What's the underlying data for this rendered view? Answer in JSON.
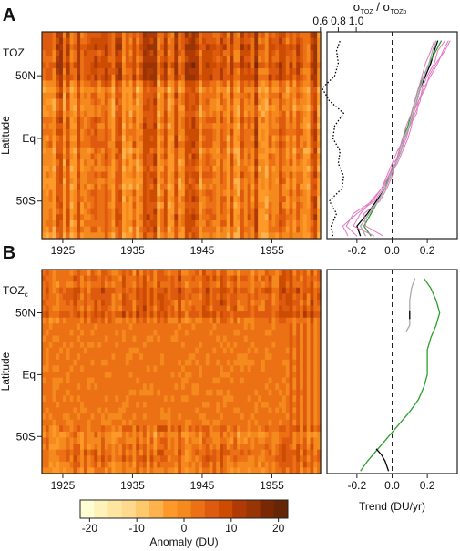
{
  "panels": [
    {
      "id": "A",
      "panel_label": "A",
      "field_label": "TOZ",
      "field_subscript": "",
      "seed": 11,
      "scale": 1.0
    },
    {
      "id": "B",
      "panel_label": "B",
      "field_label": "TOZ",
      "field_subscript": "c",
      "seed": 37,
      "scale": 0.55
    }
  ],
  "heatmap_axes": {
    "ylabel": "Latitude",
    "y_ticks": [
      "50N",
      "Eq",
      "50S"
    ],
    "x_ticks": [
      "1925",
      "1935",
      "1945",
      "1955"
    ]
  },
  "trend_axes": {
    "x_ticks": [
      "-0.2",
      "0.0",
      "0.2"
    ],
    "xlabel": "Trend (DU/yr)",
    "top_axis_label_main": "σ",
    "top_axis_label_sub1": "TOZ",
    "top_axis_label_sep": " / σ",
    "top_axis_label_sub2": "TOZb",
    "top_ticks": [
      "0.6",
      "0.8",
      "1.0"
    ]
  },
  "colorbar": {
    "ticks": [
      "-20",
      "-10",
      "0",
      "10",
      "20"
    ],
    "label": "Anomaly (DU)",
    "colors": [
      "#ffffd4",
      "#fff2b8",
      "#ffe6a0",
      "#fed98e",
      "#fec96a",
      "#feb24c",
      "#fe9929",
      "#f48a1e",
      "#ec7014",
      "#dd5a0e",
      "#cc4c02",
      "#b03a05",
      "#993404",
      "#7a2704",
      "#662506"
    ]
  },
  "chart_data": [
    {
      "type": "heatmap",
      "panel": "A",
      "x_range": [
        1922,
        1962
      ],
      "y_range": [
        -80,
        85
      ],
      "value_range": [
        -22,
        22
      ],
      "title": "",
      "xlabel": "",
      "ylabel": "Latitude"
    },
    {
      "type": "line",
      "panel": "A",
      "xlabel": "",
      "top_axis_label": "σTOZ / σTOZb",
      "x_range": [
        -0.37,
        0.37
      ],
      "y_range": [
        -80,
        85
      ],
      "series": [
        {
          "color": "#000000",
          "lat": [
            -78,
            -70,
            -60,
            -50,
            -40,
            -30,
            -20,
            -10,
            0,
            10,
            20,
            30,
            40,
            50,
            60,
            70,
            78
          ],
          "values": [
            -0.18,
            -0.2,
            -0.14,
            -0.09,
            -0.04,
            -0.01,
            0.02,
            0.05,
            0.07,
            0.1,
            0.12,
            0.14,
            0.16,
            0.19,
            0.22,
            0.24,
            0.26
          ]
        },
        {
          "color": "#2ca02c",
          "lat": [
            -78,
            -70,
            -60,
            -50,
            -40,
            -30,
            -20,
            -10,
            0,
            10,
            20,
            30,
            40,
            50,
            60,
            70,
            78
          ],
          "values": [
            -0.12,
            -0.16,
            -0.12,
            -0.08,
            -0.04,
            -0.02,
            0.02,
            0.04,
            0.06,
            0.09,
            0.11,
            0.13,
            0.15,
            0.18,
            0.21,
            0.25,
            0.28
          ]
        },
        {
          "color": "#e377c2",
          "lat": [
            -78,
            -70,
            -60,
            -50,
            -40,
            -30,
            -20,
            -10,
            0,
            10,
            20,
            30,
            40,
            50,
            60,
            70,
            78
          ],
          "values": [
            -0.25,
            -0.28,
            -0.2,
            -0.1,
            -0.05,
            -0.02,
            0.01,
            0.05,
            0.08,
            0.1,
            0.13,
            0.16,
            0.17,
            0.2,
            0.24,
            0.26,
            0.3
          ]
        },
        {
          "color": "#e377c2",
          "lat": [
            -78,
            -70,
            -60,
            -50,
            -40,
            -30,
            -20,
            -10,
            0,
            10,
            20,
            30,
            40,
            50,
            60,
            70,
            78
          ],
          "values": [
            -0.1,
            -0.22,
            -0.18,
            -0.12,
            -0.06,
            -0.02,
            0.03,
            0.06,
            0.09,
            0.11,
            0.12,
            0.15,
            0.18,
            0.22,
            0.26,
            0.29,
            0.32
          ]
        },
        {
          "color": "#e377c2",
          "lat": [
            -78,
            -70,
            -60,
            -50,
            -40,
            -30,
            -20,
            -10,
            0,
            10,
            20,
            30,
            40,
            50,
            60,
            70,
            78
          ],
          "values": [
            -0.05,
            -0.15,
            -0.16,
            -0.07,
            -0.03,
            0.0,
            0.02,
            0.04,
            0.06,
            0.08,
            0.11,
            0.13,
            0.15,
            0.17,
            0.19,
            0.22,
            0.24
          ]
        },
        {
          "color": "#e377c2",
          "lat": [
            -78,
            -70,
            -60,
            -50,
            -40,
            -30,
            -20,
            -10,
            0,
            10,
            20,
            30,
            40,
            50,
            60,
            70,
            78
          ],
          "values": [
            -0.2,
            -0.26,
            -0.22,
            -0.11,
            -0.06,
            -0.03,
            0.0,
            0.03,
            0.07,
            0.1,
            0.14,
            0.15,
            0.19,
            0.21,
            0.25,
            0.3,
            0.33
          ]
        },
        {
          "color": "#aaaaaa",
          "lat": [
            -78,
            -70,
            -60,
            -50,
            -40,
            -30,
            -20,
            -10,
            0,
            10,
            20,
            30,
            40,
            50,
            60,
            70,
            78
          ],
          "values": [
            -0.15,
            -0.18,
            -0.13,
            -0.08,
            -0.04,
            -0.01,
            0.02,
            0.05,
            0.07,
            0.1,
            0.12,
            0.14,
            0.16,
            0.18,
            0.21,
            0.23,
            0.25
          ]
        },
        {
          "color": "#000000",
          "dotted": true,
          "axis": "top",
          "lat": [
            -78,
            -70,
            -60,
            -50,
            -40,
            -30,
            -20,
            -10,
            0,
            10,
            20,
            30,
            40,
            50,
            60,
            70,
            78
          ],
          "values": [
            0.74,
            0.72,
            0.78,
            0.7,
            0.84,
            0.86,
            0.8,
            0.82,
            0.74,
            0.76,
            0.86,
            0.7,
            0.62,
            0.76,
            0.8,
            0.78,
            0.82
          ]
        }
      ]
    },
    {
      "type": "heatmap",
      "panel": "B",
      "x_range": [
        1922,
        1962
      ],
      "y_range": [
        -80,
        85
      ],
      "value_range": [
        -22,
        22
      ],
      "title": "",
      "xlabel": "",
      "ylabel": "Latitude"
    },
    {
      "type": "line",
      "panel": "B",
      "xlabel": "Trend (DU/yr)",
      "x_range": [
        -0.37,
        0.37
      ],
      "y_range": [
        -80,
        85
      ],
      "series": [
        {
          "color": "#2ca02c",
          "lat": [
            -78,
            -70,
            -60,
            -50,
            -40,
            -30,
            -20,
            -10,
            0,
            10,
            20,
            30,
            40,
            50,
            60,
            70,
            78
          ],
          "values": [
            -0.18,
            -0.14,
            -0.08,
            -0.02,
            0.04,
            0.1,
            0.15,
            0.18,
            0.2,
            0.2,
            0.2,
            0.22,
            0.25,
            0.27,
            0.25,
            0.22,
            0.18
          ]
        },
        {
          "color": "#aaaaaa",
          "lat": [
            35,
            40,
            50,
            60,
            70,
            78
          ],
          "values": [
            0.08,
            0.1,
            0.1,
            0.1,
            0.11,
            0.13
          ]
        },
        {
          "color": "#000000",
          "lat": [
            -78,
            -70,
            -65,
            -60
          ],
          "values": [
            -0.02,
            -0.04,
            -0.06,
            -0.09
          ]
        },
        {
          "color": "#000000",
          "lat": [
            45,
            52
          ],
          "values": [
            0.1,
            0.1
          ]
        }
      ]
    }
  ]
}
